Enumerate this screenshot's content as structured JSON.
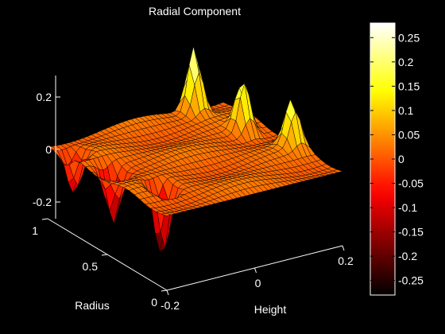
{
  "chart_data": {
    "type": "surface",
    "title": "Radial Component",
    "xlabel": "Height",
    "ylabel": "Radius",
    "zlabel": "",
    "xlim": [
      -0.2,
      0.2
    ],
    "ylim": [
      0,
      1
    ],
    "zlim": [
      -0.3,
      0.3
    ],
    "x_ticks": [
      {
        "value": -0.2,
        "label": "-0.2"
      },
      {
        "value": 0,
        "label": "0"
      },
      {
        "value": 0.2,
        "label": "0.2"
      }
    ],
    "y_ticks": [
      {
        "value": 0,
        "label": "0"
      },
      {
        "value": 0.5,
        "label": "0.5"
      },
      {
        "value": 1,
        "label": "1"
      }
    ],
    "z_ticks": [
      {
        "value": -0.2,
        "label": "-0.2"
      },
      {
        "value": 0,
        "label": "0"
      },
      {
        "value": 0.2,
        "label": "0.2"
      }
    ],
    "colorbar": {
      "colormap": "hot",
      "range": [
        -0.28,
        0.28
      ],
      "ticks": [
        {
          "value": 0.25,
          "label": "0.25"
        },
        {
          "value": 0.2,
          "label": "0.2"
        },
        {
          "value": 0.15,
          "label": "0.15"
        },
        {
          "value": 0.1,
          "label": "0.1"
        },
        {
          "value": 0.05,
          "label": "0.05"
        },
        {
          "value": 0,
          "label": "0"
        },
        {
          "value": -0.05,
          "label": "-0.05"
        },
        {
          "value": -0.1,
          "label": "-0.1"
        },
        {
          "value": -0.15,
          "label": "-0.15"
        },
        {
          "value": -0.2,
          "label": "-0.2"
        },
        {
          "value": -0.25,
          "label": "-0.25"
        }
      ]
    },
    "surface": {
      "grid": [
        41,
        23
      ],
      "base_value": 0.02,
      "features": [
        {
          "kind": "peak",
          "x": 0.12,
          "y": 0.95,
          "value": 0.28
        },
        {
          "kind": "peak",
          "x": 0.15,
          "y": 0.65,
          "value": 0.22
        },
        {
          "kind": "peak",
          "x": 0.18,
          "y": 0.35,
          "value": 0.2
        },
        {
          "kind": "trough",
          "x": -0.13,
          "y": 0.3,
          "value": -0.27
        },
        {
          "kind": "trough",
          "x": -0.16,
          "y": 0.6,
          "value": -0.18
        },
        {
          "kind": "trough",
          "x": -0.18,
          "y": 0.85,
          "value": -0.15
        }
      ]
    }
  }
}
